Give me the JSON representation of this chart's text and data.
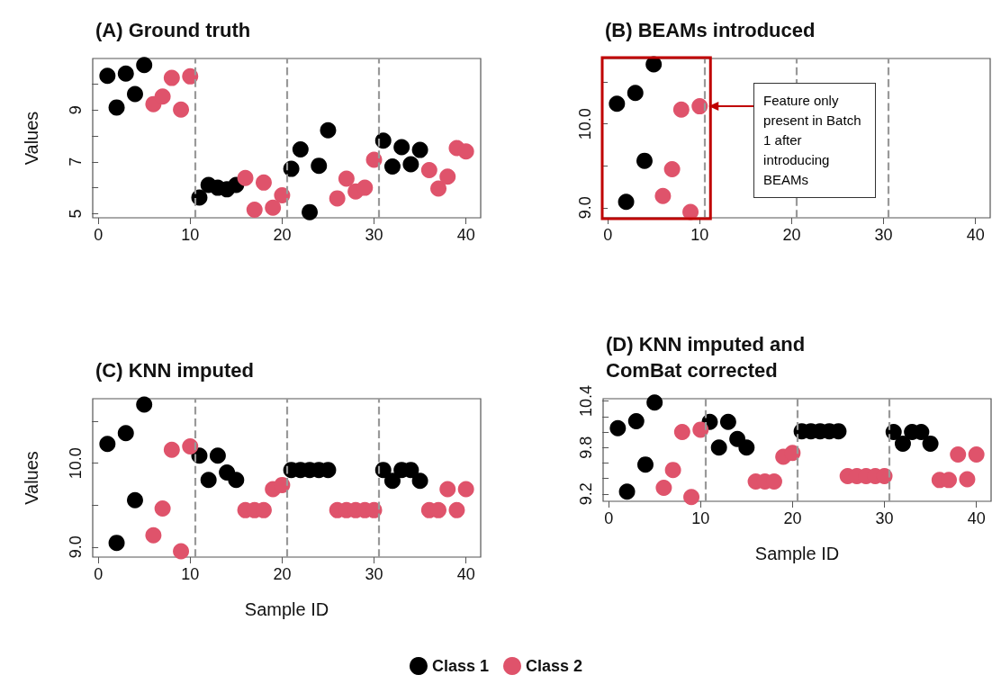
{
  "chart_data": [
    {
      "type": "scatter",
      "title": "(A) Ground truth",
      "ylabel": "Values",
      "x": [
        1,
        2,
        3,
        4,
        5,
        6,
        7,
        8,
        9,
        10,
        11,
        12,
        13,
        14,
        15,
        16,
        17,
        18,
        19,
        20,
        21,
        22,
        23,
        24,
        25,
        26,
        27,
        28,
        29,
        30,
        31,
        32,
        33,
        34,
        35,
        36,
        37,
        38,
        39,
        40
      ],
      "series": [
        {
          "color": "#000000",
          "values": [
            10.32,
            9.1,
            10.41,
            9.62,
            10.74,
            null,
            null,
            null,
            null,
            null,
            5.62,
            6.11,
            6.0,
            5.94,
            6.11,
            null,
            null,
            null,
            null,
            null,
            6.73,
            7.48,
            5.06,
            6.85,
            8.22,
            null,
            null,
            null,
            null,
            null,
            7.82,
            6.82,
            7.57,
            6.91,
            7.46,
            null,
            null,
            null,
            null,
            null
          ]
        },
        {
          "color": "#df536b",
          "values": [
            null,
            null,
            null,
            null,
            null,
            9.23,
            9.52,
            10.24,
            9.02,
            10.3,
            null,
            null,
            null,
            null,
            null,
            6.38,
            5.15,
            6.2,
            5.23,
            5.71,
            null,
            null,
            null,
            null,
            null,
            5.59,
            6.35,
            5.86,
            6.0,
            7.08,
            null,
            null,
            null,
            null,
            null,
            6.68,
            5.97,
            6.43,
            7.53,
            7.4
          ]
        }
      ],
      "xlim": [
        -0.6,
        41.6
      ],
      "xticks": [
        0,
        10,
        20,
        30,
        40
      ],
      "ylim": [
        4.84,
        10.99
      ],
      "yticks": [
        5,
        {
          "value": 6,
          "label": null
        },
        7,
        {
          "value": 8,
          "label": null
        },
        9,
        {
          "value": 10,
          "label": null
        }
      ],
      "ref_lines": [
        {
          "axis": "x",
          "value": 10.5,
          "color": "#999999",
          "line_style": "dashed"
        },
        {
          "axis": "x",
          "value": 20.5,
          "color": "#999999",
          "line_style": "dashed"
        },
        {
          "axis": "x",
          "value": 30.5,
          "color": "#999999",
          "line_style": "dashed"
        }
      ],
      "marker": "circle",
      "grid": false
    },
    {
      "type": "scatter",
      "title": "(B) BEAMs introduced",
      "x": [
        1,
        2,
        3,
        4,
        5,
        6,
        7,
        8,
        9,
        10
      ],
      "series": [
        {
          "color": "#000000",
          "values": [
            10.24,
            9.07,
            10.37,
            9.56,
            10.71,
            null,
            null,
            null,
            null,
            null
          ]
        },
        {
          "color": "#df536b",
          "values": [
            null,
            null,
            null,
            null,
            null,
            9.14,
            9.46,
            10.17,
            8.95,
            10.21
          ]
        }
      ],
      "xlim": [
        -0.6,
        41.6
      ],
      "xticks": [
        0,
        10,
        20,
        30,
        40
      ],
      "ylim": [
        8.88,
        10.78
      ],
      "yticks": [
        {
          "value": 9,
          "label": "9.0"
        },
        {
          "value": 9.5,
          "label": null
        },
        {
          "value": 10,
          "label": "10.0"
        },
        {
          "value": 10.5,
          "label": null
        }
      ],
      "ref_lines": [
        {
          "axis": "x",
          "value": 10.5,
          "color": "#999999",
          "line_style": "dashed"
        },
        {
          "axis": "x",
          "value": 20.5,
          "color": "#999999",
          "line_style": "dashed"
        },
        {
          "axis": "x",
          "value": 30.5,
          "color": "#999999",
          "line_style": "dashed"
        }
      ],
      "annotations": [
        "Feature only present in Batch 1 after introducing BEAMs"
      ],
      "marker": "circle",
      "grid": false
    },
    {
      "type": "scatter",
      "title": "(C) KNN imputed",
      "ylabel": "Values",
      "xlabel": "Sample ID",
      "x": [
        1,
        2,
        3,
        4,
        5,
        6,
        7,
        8,
        9,
        10,
        11,
        12,
        13,
        14,
        15,
        16,
        17,
        18,
        19,
        20,
        21,
        22,
        23,
        24,
        25,
        26,
        27,
        28,
        29,
        30,
        31,
        32,
        33,
        34,
        35,
        36,
        37,
        38,
        39,
        40
      ],
      "series": [
        {
          "name": "Class 1",
          "color": "#000000",
          "values": [
            10.23,
            9.05,
            10.36,
            9.56,
            10.7,
            null,
            null,
            null,
            null,
            null,
            10.09,
            9.8,
            10.09,
            9.89,
            9.8,
            null,
            null,
            null,
            null,
            null,
            9.92,
            9.92,
            9.92,
            9.92,
            9.92,
            null,
            null,
            null,
            null,
            null,
            9.92,
            9.79,
            9.92,
            9.92,
            9.79,
            null,
            null,
            null,
            null,
            null
          ]
        },
        {
          "name": "Class 2",
          "color": "#df536b",
          "values": [
            null,
            null,
            null,
            null,
            null,
            9.14,
            9.46,
            10.16,
            8.95,
            10.2,
            null,
            null,
            null,
            null,
            null,
            9.44,
            9.44,
            9.44,
            9.69,
            9.74,
            null,
            null,
            null,
            null,
            null,
            9.44,
            9.44,
            9.44,
            9.44,
            9.44,
            null,
            null,
            null,
            null,
            null,
            9.44,
            9.44,
            9.69,
            9.44,
            9.69
          ]
        }
      ],
      "xlim": [
        -0.6,
        41.6
      ],
      "xticks": [
        0,
        10,
        20,
        30,
        40
      ],
      "ylim": [
        8.88,
        10.77
      ],
      "yticks": [
        {
          "value": 9,
          "label": "9.0"
        },
        {
          "value": 9.5,
          "label": null
        },
        {
          "value": 10,
          "label": "10.0"
        },
        {
          "value": 10.5,
          "label": null
        }
      ],
      "ref_lines": [
        {
          "axis": "x",
          "value": 10.5,
          "color": "#999999",
          "line_style": "dashed"
        },
        {
          "axis": "x",
          "value": 20.5,
          "color": "#999999",
          "line_style": "dashed"
        },
        {
          "axis": "x",
          "value": 30.5,
          "color": "#999999",
          "line_style": "dashed"
        }
      ],
      "marker": "circle",
      "grid": false,
      "legend": "bottom"
    },
    {
      "type": "scatter",
      "title": "(D) KNN imputed and ComBat corrected",
      "xlabel": "Sample ID",
      "x": [
        1,
        2,
        3,
        4,
        5,
        6,
        7,
        8,
        9,
        10,
        11,
        12,
        13,
        14,
        15,
        16,
        17,
        18,
        19,
        20,
        21,
        22,
        23,
        24,
        25,
        26,
        27,
        28,
        29,
        30,
        31,
        32,
        33,
        34,
        35,
        36,
        37,
        38,
        39,
        40
      ],
      "series": [
        {
          "color": "#000000",
          "values": [
            10.05,
            9.23,
            10.14,
            9.58,
            10.38,
            null,
            null,
            null,
            null,
            null,
            10.13,
            9.8,
            10.13,
            9.91,
            9.8,
            null,
            null,
            null,
            null,
            null,
            10.01,
            10.01,
            10.01,
            10.01,
            10.01,
            null,
            null,
            null,
            null,
            null,
            10.0,
            9.85,
            10.0,
            10.0,
            9.85,
            null,
            null,
            null,
            null,
            null
          ]
        },
        {
          "color": "#df536b",
          "values": [
            null,
            null,
            null,
            null,
            null,
            9.28,
            9.51,
            10.0,
            9.16,
            10.03,
            null,
            null,
            null,
            null,
            null,
            9.36,
            9.36,
            9.36,
            9.68,
            9.73,
            null,
            null,
            null,
            null,
            null,
            9.43,
            9.43,
            9.43,
            9.43,
            9.43,
            null,
            null,
            null,
            null,
            null,
            9.38,
            9.38,
            9.71,
            9.39,
            9.71
          ]
        }
      ],
      "xlim": [
        -0.6,
        41.6
      ],
      "xticks": [
        0,
        10,
        20,
        30,
        40
      ],
      "ylim": [
        9.105,
        10.43
      ],
      "yticks": [
        9.2,
        {
          "value": 9.4,
          "label": null
        },
        {
          "value": 9.6,
          "label": null
        },
        9.8,
        {
          "value": 10,
          "label": null
        },
        {
          "value": 10.2,
          "label": null
        },
        10.4
      ],
      "ref_lines": [
        {
          "axis": "x",
          "value": 10.5,
          "color": "#999999",
          "line_style": "dashed"
        },
        {
          "axis": "x",
          "value": 20.5,
          "color": "#999999",
          "line_style": "dashed"
        },
        {
          "axis": "x",
          "value": 30.5,
          "color": "#999999",
          "line_style": "dashed"
        }
      ],
      "marker": "circle",
      "grid": false
    }
  ]
}
